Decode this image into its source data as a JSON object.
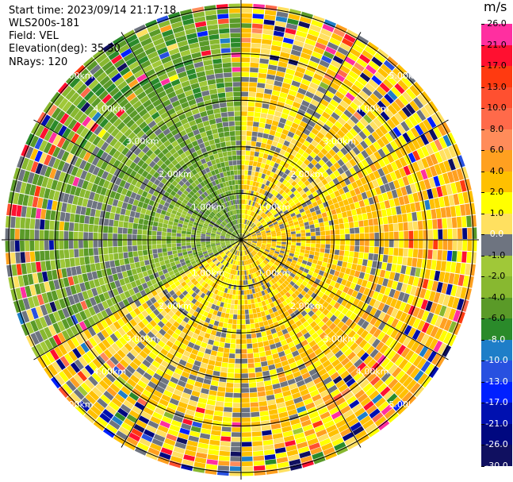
{
  "header": {
    "start_time": "Start time: 2023/09/14 21:17:18",
    "instrument": "WLS200s-181",
    "field": "Field: VEL",
    "elevation": "Elevation(deg): 35.30",
    "nrays": "NRays: 120"
  },
  "chart_data": {
    "type": "heatmap",
    "title": "",
    "projection": "polar PPI (plan position indicator)",
    "range_rings_km": [
      1,
      2,
      3,
      4,
      5
    ],
    "range_labels": [
      "1.00km",
      "2.00km",
      "3.00km",
      "4.00km",
      "5.00km"
    ],
    "n_rays": 120,
    "spokes_deg": [
      0,
      30,
      60,
      90,
      120,
      150
    ],
    "colorbar": {
      "title": "m/s",
      "ticks": [
        "26.0",
        "21.0",
        "17.0",
        "13.0",
        "10.0",
        "8.0",
        "6.0",
        "4.0",
        "2.0",
        "1.0",
        "0.0",
        "-1.0",
        "-2.0",
        "-4.0",
        "-6.0",
        "-8.0",
        "-10.0",
        "-13.0",
        "-17.0",
        "-21.0",
        "-26.0",
        "-30.0"
      ],
      "bins": [
        {
          "label": "26.0",
          "color": "#ff2fa0"
        },
        {
          "label": "21.0",
          "color": "#ff1030"
        },
        {
          "label": "17.0",
          "color": "#ff3a10"
        },
        {
          "label": "13.0",
          "color": "#ff5030"
        },
        {
          "label": "10.0",
          "color": "#ff6a4a"
        },
        {
          "label": "8.0",
          "color": "#ff8c5a"
        },
        {
          "label": "6.0",
          "color": "#ffa020"
        },
        {
          "label": "4.0",
          "color": "#ffc000"
        },
        {
          "label": "2.0",
          "color": "#ffff00"
        },
        {
          "label": "1.0",
          "color": "#ffe060"
        },
        {
          "label": "0.0",
          "color": "#6e7480"
        },
        {
          "label": "-1.0",
          "color": "#a0c838"
        },
        {
          "label": "-2.0",
          "color": "#88b830"
        },
        {
          "label": "-4.0",
          "color": "#5a9a28"
        },
        {
          "label": "-6.0",
          "color": "#2a8a2a"
        },
        {
          "label": "-8.0",
          "color": "#1e7ec8"
        },
        {
          "label": "-10.0",
          "color": "#2850e0"
        },
        {
          "label": "-13.0",
          "color": "#0020ff"
        },
        {
          "label": "-17.0",
          "color": "#0010b0"
        },
        {
          "label": "-21.0",
          "color": "#000880"
        },
        {
          "label": "-26.0",
          "color": "#101060"
        }
      ]
    },
    "sector_pattern": [
      {
        "from_deg": 300,
        "to_deg": 360,
        "dominant_ms": -3,
        "note": "green/grey receding flow"
      },
      {
        "from_deg": 0,
        "to_deg": 60,
        "dominant_ms": 2.5,
        "note": "yellow approaching flow"
      },
      {
        "from_deg": 60,
        "to_deg": 180,
        "dominant_ms": 3.5,
        "note": "yellow/orange approaching flow"
      },
      {
        "from_deg": 180,
        "to_deg": 240,
        "dominant_ms": 2.5,
        "note": "yellow"
      },
      {
        "from_deg": 240,
        "to_deg": 300,
        "dominant_ms": -2,
        "note": "mixed green/grey"
      }
    ]
  }
}
